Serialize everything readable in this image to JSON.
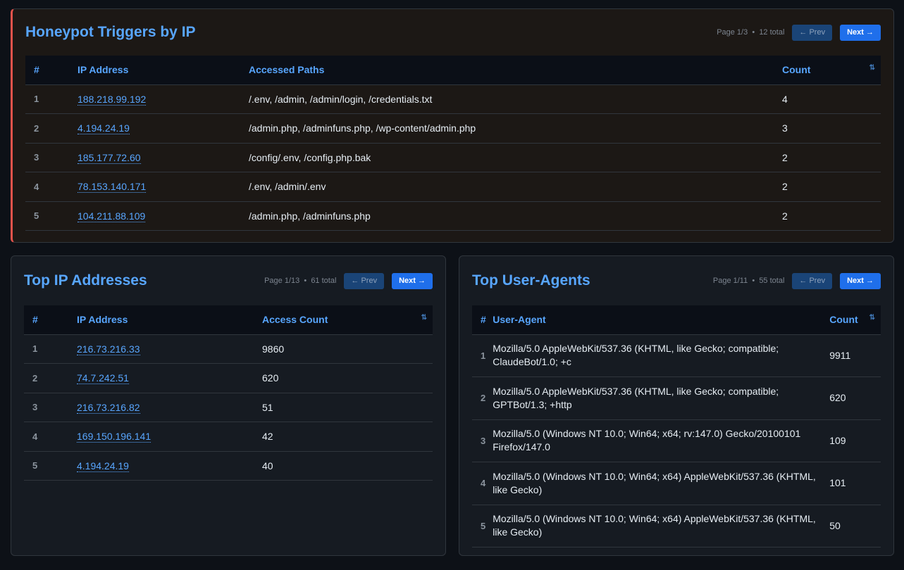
{
  "honeypot": {
    "title": "Honeypot Triggers by IP",
    "page": "Page 1/3",
    "total": "12 total",
    "prev": "← Prev",
    "next": "Next →",
    "columns": [
      "#",
      "IP Address",
      "Accessed Paths",
      "Count"
    ],
    "rows": [
      {
        "n": "1",
        "ip": "188.218.99.192",
        "paths": "/.env, /admin, /admin/login, /credentials.txt",
        "count": "4"
      },
      {
        "n": "2",
        "ip": "4.194.24.19",
        "paths": "/admin.php, /adminfuns.php, /wp-content/admin.php",
        "count": "3"
      },
      {
        "n": "3",
        "ip": "185.177.72.60",
        "paths": "/config/.env, /config.php.bak",
        "count": "2"
      },
      {
        "n": "4",
        "ip": "78.153.140.171",
        "paths": "/.env, /admin/.env",
        "count": "2"
      },
      {
        "n": "5",
        "ip": "104.211.88.109",
        "paths": "/admin.php, /adminfuns.php",
        "count": "2"
      }
    ]
  },
  "top_ips": {
    "title": "Top IP Addresses",
    "page": "Page 1/13",
    "total": "61 total",
    "prev": "← Prev",
    "next": "Next →",
    "columns": [
      "#",
      "IP Address",
      "Access Count"
    ],
    "rows": [
      {
        "n": "1",
        "ip": "216.73.216.33",
        "count": "9860"
      },
      {
        "n": "2",
        "ip": "74.7.242.51",
        "count": "620"
      },
      {
        "n": "3",
        "ip": "216.73.216.82",
        "count": "51"
      },
      {
        "n": "4",
        "ip": "169.150.196.141",
        "count": "42"
      },
      {
        "n": "5",
        "ip": "4.194.24.19",
        "count": "40"
      }
    ]
  },
  "top_uas": {
    "title": "Top User-Agents",
    "page": "Page 1/11",
    "total": "55 total",
    "prev": "← Prev",
    "next": "Next →",
    "columns": [
      "#",
      "User-Agent",
      "Count"
    ],
    "rows": [
      {
        "n": "1",
        "ua": "Mozilla/5.0 AppleWebKit/537.36 (KHTML, like Gecko; compatible; ClaudeBot/1.0; +c",
        "count": "9911"
      },
      {
        "n": "2",
        "ua": "Mozilla/5.0 AppleWebKit/537.36 (KHTML, like Gecko; compatible; GPTBot/1.3; +http",
        "count": "620"
      },
      {
        "n": "3",
        "ua": "Mozilla/5.0 (Windows NT 10.0; Win64; x64; rv:147.0) Gecko/20100101 Firefox/147.0",
        "count": "109"
      },
      {
        "n": "4",
        "ua": "Mozilla/5.0 (Windows NT 10.0; Win64; x64) AppleWebKit/537.36 (KHTML, like Gecko)",
        "count": "101"
      },
      {
        "n": "5",
        "ua": "Mozilla/5.0 (Windows NT 10.0; Win64; x64) AppleWebKit/537.36 (KHTML, like Gecko)",
        "count": "50"
      }
    ]
  },
  "sort_icon": "sort-arrows-icon",
  "sort_glyph": "⇅",
  "colors": {
    "accent": "#58a6ff",
    "button": "#1f6feb",
    "alert": "#e5534b",
    "background": "#0d1117"
  }
}
